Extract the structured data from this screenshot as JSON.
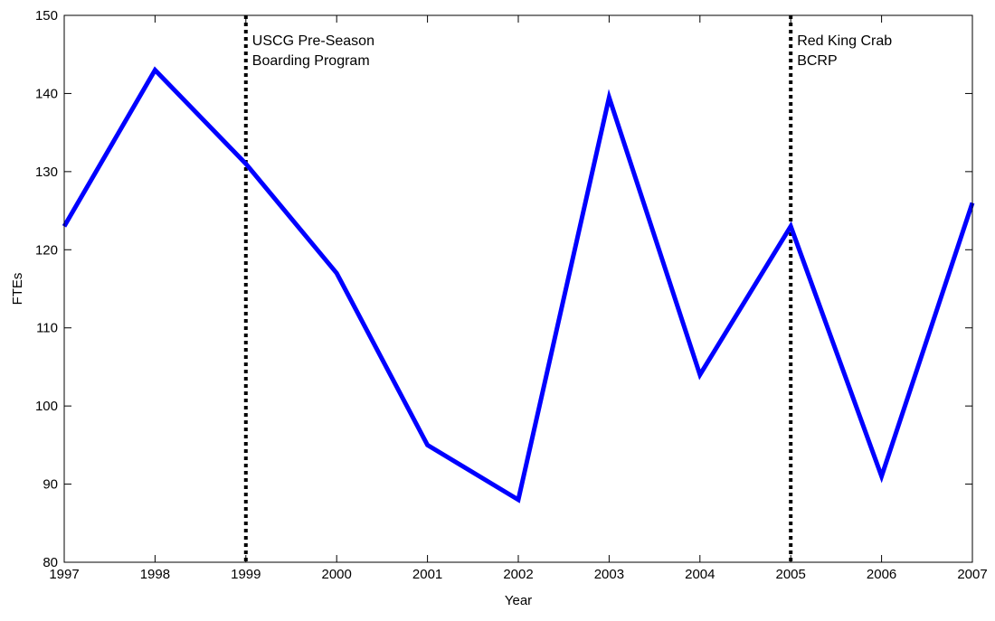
{
  "chart_data": {
    "type": "line",
    "title": "",
    "xlabel": "Year",
    "ylabel": "FTEs",
    "xlim": [
      1997,
      2007
    ],
    "ylim": [
      80,
      150
    ],
    "x_ticks": [
      "1997",
      "1998",
      "1999",
      "2000",
      "2001",
      "2002",
      "2003",
      "2004",
      "2005",
      "2006",
      "2007"
    ],
    "y_ticks": [
      "80",
      "90",
      "100",
      "110",
      "120",
      "130",
      "140",
      "150"
    ],
    "grid": false,
    "legend": null,
    "series": [
      {
        "color": "#0000ff",
        "x": [
          1997,
          1998,
          1999,
          2000,
          2001,
          2002,
          2003,
          2004,
          2005,
          2006,
          2007
        ],
        "y": [
          123,
          143,
          131,
          117,
          95,
          88,
          139.5,
          104,
          123,
          91,
          126
        ]
      }
    ],
    "annotations": [
      {
        "x": 1999,
        "lines": [
          "USCG Pre-Season",
          "Boarding Program"
        ],
        "style": "dotted-vertical-line"
      },
      {
        "x": 2005,
        "lines": [
          "Red King Crab",
          "BCRP"
        ],
        "style": "dotted-vertical-line"
      }
    ]
  }
}
